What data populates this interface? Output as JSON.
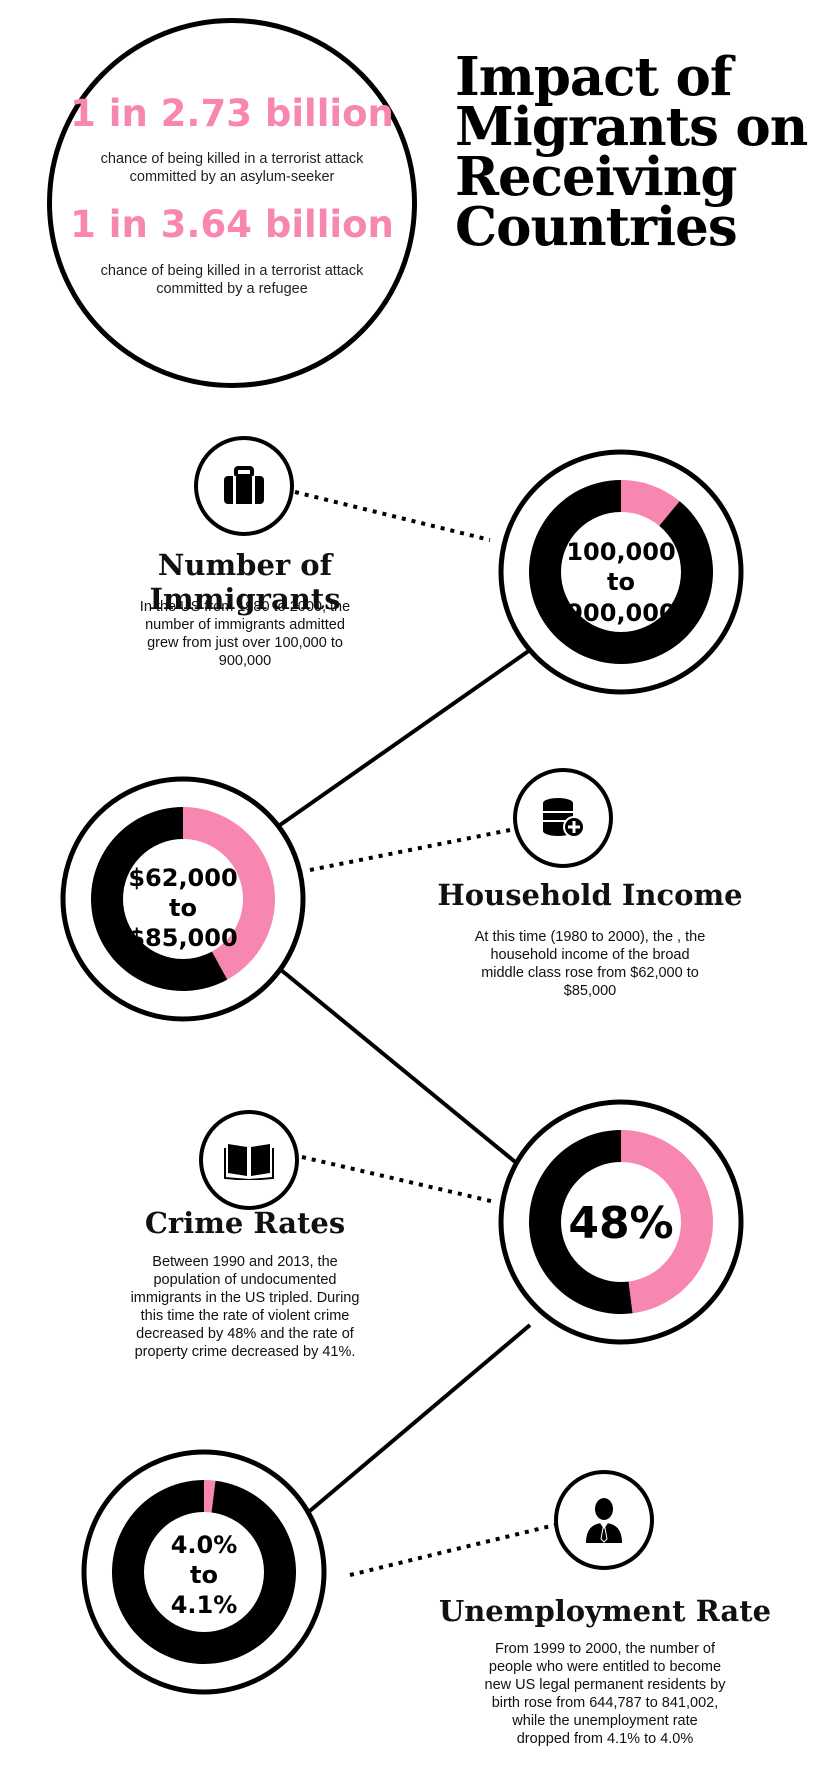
{
  "title": [
    "Impact of",
    "Migrants on",
    "Receiving",
    "Countries"
  ],
  "hero": {
    "stat1": "1 in 2.73 billion",
    "stat1_desc": [
      "chance of being killed in a terrorist attack",
      "committed by an asylum-seeker"
    ],
    "stat2": "1 in 3.64 billion",
    "stat2_desc": [
      "chance of being killed in a terrorist attack",
      "committed by a refugee"
    ]
  },
  "colors": {
    "accent": "#f787b0",
    "dark": "#000000",
    "background": "#ffffff"
  },
  "sections": [
    {
      "title": "Number of Immigrants",
      "icon": "briefcase-icon",
      "desc": [
        "In the US from 1980 to 2000, the",
        "number of immigrants admitted",
        "grew from just over 100,000 to",
        "900,000"
      ],
      "donut_label": [
        "100,000",
        "to",
        "900,000"
      ]
    },
    {
      "title": "Household Income",
      "icon": "database-plus-icon",
      "desc": [
        "At this time (1980 to 2000), the , the",
        "household income of the broad",
        "middle class rose from $62,000 to",
        "$85,000"
      ],
      "donut_label": [
        "$62,000",
        "to",
        "$85,000"
      ]
    },
    {
      "title": "Crime Rates",
      "icon": "book-icon",
      "desc": [
        "Between 1990 and 2013, the",
        "population of undocumented",
        "immigrants in the US tripled. During",
        "this time the rate of violent crime",
        "decreased by 48% and the rate of",
        "property crime decreased by 41%."
      ],
      "donut_label": [
        "48%"
      ]
    },
    {
      "title": "Unemployment Rate",
      "icon": "person-icon",
      "desc": [
        "From 1999 to 2000, the number of",
        "people who were entitled to become",
        "new US legal permanent residents by",
        "birth rose from 644,787 to 841,002,",
        "while the unemployment rate",
        "dropped from 4.1% to 4.0%"
      ],
      "donut_label": [
        "4.0%",
        "to",
        "4.1%"
      ]
    }
  ],
  "chart_data": [
    {
      "type": "pie",
      "values": [
        11,
        89
      ],
      "colors": [
        "#f787b0",
        "#000000"
      ]
    },
    {
      "type": "pie",
      "values": [
        42,
        58
      ],
      "colors": [
        "#f787b0",
        "#000000"
      ]
    },
    {
      "type": "pie",
      "values": [
        48,
        52
      ],
      "colors": [
        "#f787b0",
        "#000000"
      ]
    },
    {
      "type": "pie",
      "values": [
        2,
        98
      ],
      "colors": [
        "#f787b0",
        "#000000"
      ]
    }
  ]
}
